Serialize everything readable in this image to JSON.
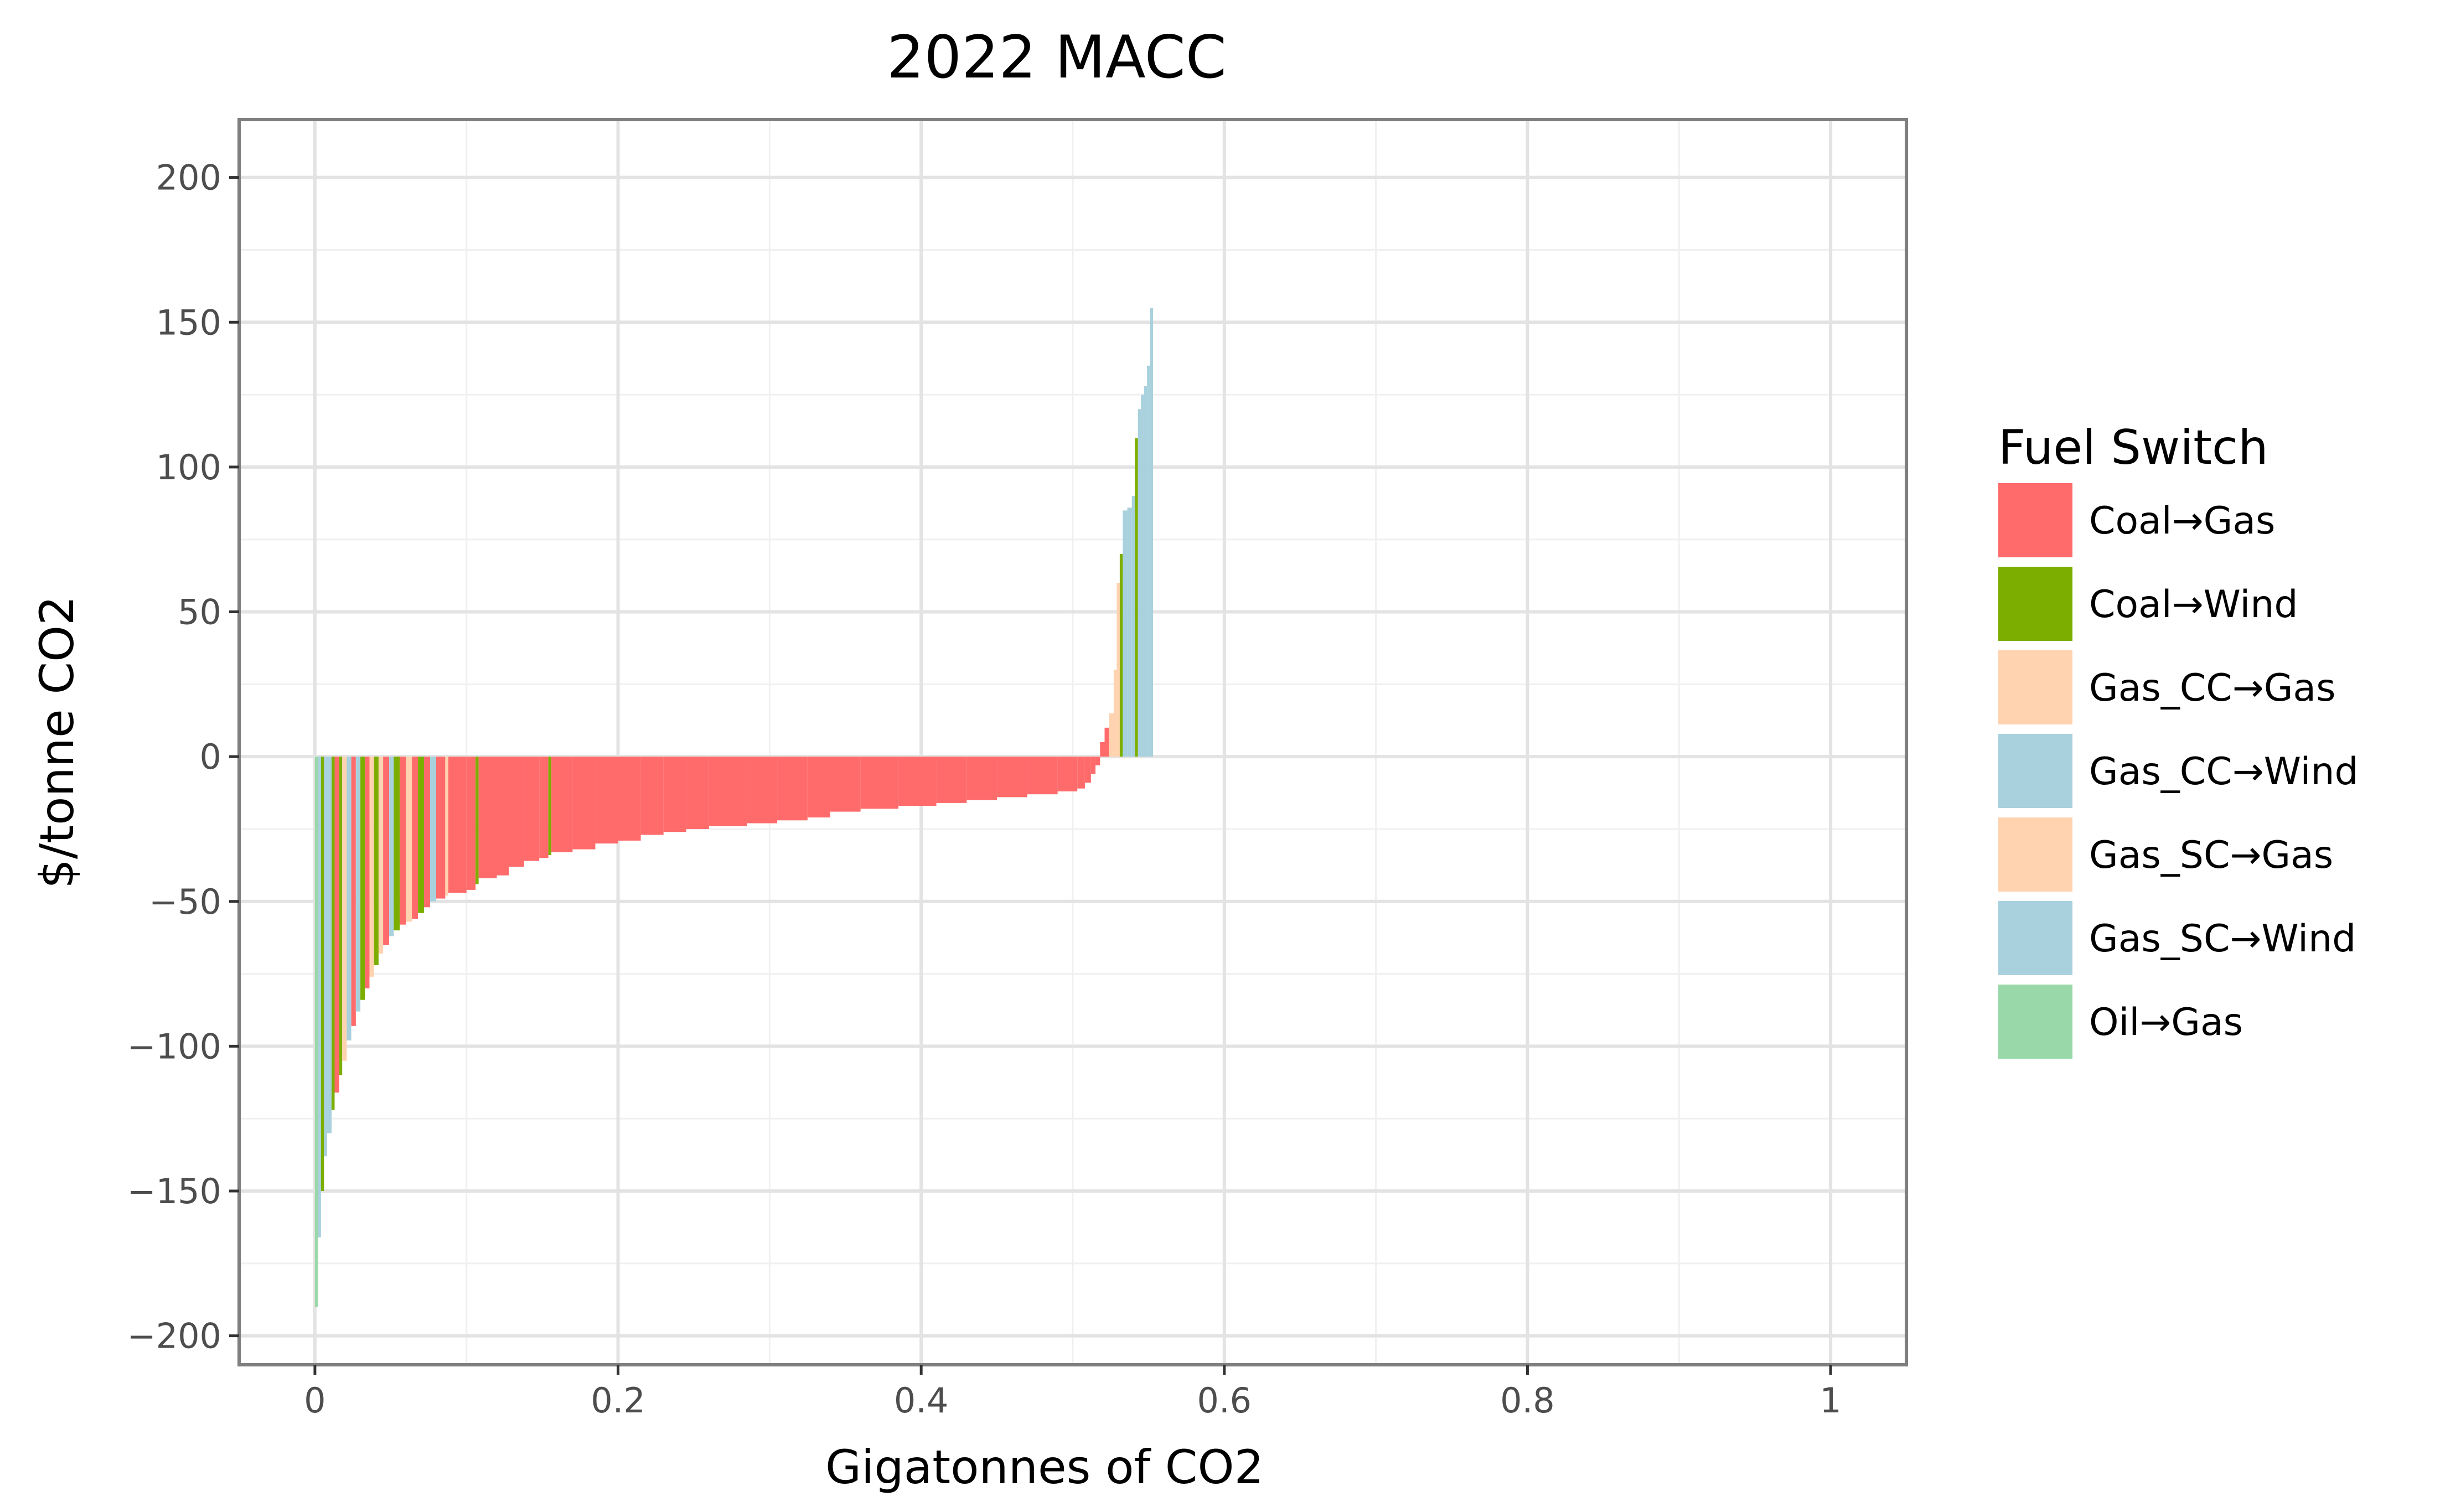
{
  "chart_data": {
    "type": "bar",
    "title": "2022 MACC",
    "xlabel": "Gigatonnes of CO2",
    "ylabel": "$/tonne CO2",
    "xlim": [
      -0.05,
      1.05
    ],
    "ylim": [
      -210,
      220
    ],
    "x_ticks": [
      0,
      0.2,
      0.4,
      0.6,
      0.8,
      1
    ],
    "x_tick_labels": [
      "0",
      "0.2",
      "0.4",
      "0.6",
      "0.8",
      "1"
    ],
    "y_ticks": [
      200,
      150,
      100,
      50,
      0,
      -50,
      -100,
      -150,
      -200
    ],
    "y_tick_labels": [
      "200",
      "150",
      "100",
      "50",
      "0",
      "−50",
      "−100",
      "−150",
      "−200"
    ],
    "grid": true,
    "legend_position": "right",
    "legend": {
      "title": "Fuel Switch",
      "entries": [
        {
          "label": "Coal→Gas",
          "color": "#FF6B6B"
        },
        {
          "label": "Coal→Wind",
          "color": "#7CAE00"
        },
        {
          "label": "Gas_CC→Gas",
          "color": "#FFD3B0"
        },
        {
          "label": "Gas_CC→Wind",
          "color": "#A8D1DD"
        },
        {
          "label": "Gas_SC→Gas",
          "color": "#FFD3B0"
        },
        {
          "label": "Gas_SC→Wind",
          "color": "#A8D1DD"
        },
        {
          "label": "Oil→Gas",
          "color": "#99D8A8"
        }
      ]
    },
    "steps": [
      {
        "x0": 0.0,
        "x1": 0.002,
        "y": -190,
        "fuel": "Oil→Gas"
      },
      {
        "x0": 0.002,
        "x1": 0.004,
        "y": -166,
        "fuel": "Gas_CC→Wind"
      },
      {
        "x0": 0.004,
        "x1": 0.006,
        "y": -150,
        "fuel": "Coal→Wind"
      },
      {
        "x0": 0.006,
        "x1": 0.008,
        "y": -138,
        "fuel": "Gas_SC→Wind"
      },
      {
        "x0": 0.008,
        "x1": 0.011,
        "y": -130,
        "fuel": "Gas_CC→Wind"
      },
      {
        "x0": 0.011,
        "x1": 0.013,
        "y": -122,
        "fuel": "Coal→Wind"
      },
      {
        "x0": 0.013,
        "x1": 0.016,
        "y": -116,
        "fuel": "Coal→Gas"
      },
      {
        "x0": 0.016,
        "x1": 0.018,
        "y": -110,
        "fuel": "Coal→Wind"
      },
      {
        "x0": 0.018,
        "x1": 0.021,
        "y": -105,
        "fuel": "Gas_CC→Gas"
      },
      {
        "x0": 0.021,
        "x1": 0.024,
        "y": -98,
        "fuel": "Gas_CC→Wind"
      },
      {
        "x0": 0.024,
        "x1": 0.027,
        "y": -93,
        "fuel": "Coal→Gas"
      },
      {
        "x0": 0.027,
        "x1": 0.03,
        "y": -88,
        "fuel": "Gas_SC→Wind"
      },
      {
        "x0": 0.03,
        "x1": 0.033,
        "y": -84,
        "fuel": "Coal→Wind"
      },
      {
        "x0": 0.033,
        "x1": 0.036,
        "y": -80,
        "fuel": "Coal→Gas"
      },
      {
        "x0": 0.036,
        "x1": 0.039,
        "y": -76,
        "fuel": "Gas_CC→Gas"
      },
      {
        "x0": 0.039,
        "x1": 0.042,
        "y": -72,
        "fuel": "Coal→Wind"
      },
      {
        "x0": 0.042,
        "x1": 0.045,
        "y": -68,
        "fuel": "Gas_SC→Gas"
      },
      {
        "x0": 0.045,
        "x1": 0.049,
        "y": -65,
        "fuel": "Coal→Gas"
      },
      {
        "x0": 0.049,
        "x1": 0.052,
        "y": -62,
        "fuel": "Gas_CC→Wind"
      },
      {
        "x0": 0.052,
        "x1": 0.056,
        "y": -60,
        "fuel": "Coal→Wind"
      },
      {
        "x0": 0.056,
        "x1": 0.06,
        "y": -58,
        "fuel": "Coal→Gas"
      },
      {
        "x0": 0.06,
        "x1": 0.064,
        "y": -57,
        "fuel": "Gas_CC→Gas"
      },
      {
        "x0": 0.064,
        "x1": 0.068,
        "y": -56,
        "fuel": "Coal→Gas"
      },
      {
        "x0": 0.068,
        "x1": 0.072,
        "y": -54,
        "fuel": "Coal→Wind"
      },
      {
        "x0": 0.072,
        "x1": 0.076,
        "y": -52,
        "fuel": "Coal→Gas"
      },
      {
        "x0": 0.076,
        "x1": 0.08,
        "y": -50,
        "fuel": "Gas_SC→Wind"
      },
      {
        "x0": 0.08,
        "x1": 0.086,
        "y": -49,
        "fuel": "Coal→Gas"
      },
      {
        "x0": 0.086,
        "x1": 0.088,
        "y": -48,
        "fuel": "Gas_CC→Gas"
      },
      {
        "x0": 0.088,
        "x1": 0.1,
        "y": -47,
        "fuel": "Coal→Gas"
      },
      {
        "x0": 0.1,
        "x1": 0.106,
        "y": -46,
        "fuel": "Coal→Gas"
      },
      {
        "x0": 0.106,
        "x1": 0.108,
        "y": -44,
        "fuel": "Coal→Wind"
      },
      {
        "x0": 0.108,
        "x1": 0.12,
        "y": -42,
        "fuel": "Coal→Gas"
      },
      {
        "x0": 0.12,
        "x1": 0.128,
        "y": -41,
        "fuel": "Coal→Gas"
      },
      {
        "x0": 0.128,
        "x1": 0.138,
        "y": -38,
        "fuel": "Coal→Gas"
      },
      {
        "x0": 0.138,
        "x1": 0.148,
        "y": -36,
        "fuel": "Coal→Gas"
      },
      {
        "x0": 0.148,
        "x1": 0.154,
        "y": -35,
        "fuel": "Coal→Gas"
      },
      {
        "x0": 0.154,
        "x1": 0.156,
        "y": -34,
        "fuel": "Coal→Wind"
      },
      {
        "x0": 0.156,
        "x1": 0.17,
        "y": -33,
        "fuel": "Coal→Gas"
      },
      {
        "x0": 0.17,
        "x1": 0.185,
        "y": -32,
        "fuel": "Coal→Gas"
      },
      {
        "x0": 0.185,
        "x1": 0.2,
        "y": -30,
        "fuel": "Coal→Gas"
      },
      {
        "x0": 0.2,
        "x1": 0.215,
        "y": -29,
        "fuel": "Coal→Gas"
      },
      {
        "x0": 0.215,
        "x1": 0.23,
        "y": -27,
        "fuel": "Coal→Gas"
      },
      {
        "x0": 0.23,
        "x1": 0.245,
        "y": -26,
        "fuel": "Coal→Gas"
      },
      {
        "x0": 0.245,
        "x1": 0.26,
        "y": -25,
        "fuel": "Coal→Gas"
      },
      {
        "x0": 0.26,
        "x1": 0.285,
        "y": -24,
        "fuel": "Coal→Gas"
      },
      {
        "x0": 0.285,
        "x1": 0.305,
        "y": -23,
        "fuel": "Coal→Gas"
      },
      {
        "x0": 0.305,
        "x1": 0.325,
        "y": -22,
        "fuel": "Coal→Gas"
      },
      {
        "x0": 0.325,
        "x1": 0.34,
        "y": -21,
        "fuel": "Coal→Gas"
      },
      {
        "x0": 0.34,
        "x1": 0.36,
        "y": -19,
        "fuel": "Coal→Gas"
      },
      {
        "x0": 0.36,
        "x1": 0.385,
        "y": -18,
        "fuel": "Coal→Gas"
      },
      {
        "x0": 0.385,
        "x1": 0.41,
        "y": -17,
        "fuel": "Coal→Gas"
      },
      {
        "x0": 0.41,
        "x1": 0.43,
        "y": -16,
        "fuel": "Coal→Gas"
      },
      {
        "x0": 0.43,
        "x1": 0.45,
        "y": -15,
        "fuel": "Coal→Gas"
      },
      {
        "x0": 0.45,
        "x1": 0.47,
        "y": -14,
        "fuel": "Coal→Gas"
      },
      {
        "x0": 0.47,
        "x1": 0.49,
        "y": -13,
        "fuel": "Coal→Gas"
      },
      {
        "x0": 0.49,
        "x1": 0.503,
        "y": -12,
        "fuel": "Coal→Gas"
      },
      {
        "x0": 0.503,
        "x1": 0.508,
        "y": -11,
        "fuel": "Coal→Gas"
      },
      {
        "x0": 0.508,
        "x1": 0.512,
        "y": -9,
        "fuel": "Coal→Gas"
      },
      {
        "x0": 0.512,
        "x1": 0.515,
        "y": -6,
        "fuel": "Coal→Gas"
      },
      {
        "x0": 0.515,
        "x1": 0.518,
        "y": -3,
        "fuel": "Coal→Gas"
      },
      {
        "x0": 0.518,
        "x1": 0.521,
        "y": 5,
        "fuel": "Coal→Gas"
      },
      {
        "x0": 0.521,
        "x1": 0.524,
        "y": 10,
        "fuel": "Coal→Gas"
      },
      {
        "x0": 0.524,
        "x1": 0.527,
        "y": 15,
        "fuel": "Gas_CC→Gas"
      },
      {
        "x0": 0.527,
        "x1": 0.529,
        "y": 30,
        "fuel": "Gas_CC→Gas"
      },
      {
        "x0": 0.529,
        "x1": 0.531,
        "y": 60,
        "fuel": "Gas_SC→Gas"
      },
      {
        "x0": 0.531,
        "x1": 0.533,
        "y": 70,
        "fuel": "Coal→Wind"
      },
      {
        "x0": 0.533,
        "x1": 0.536,
        "y": 85,
        "fuel": "Gas_CC→Wind"
      },
      {
        "x0": 0.536,
        "x1": 0.539,
        "y": 86,
        "fuel": "Gas_CC→Wind"
      },
      {
        "x0": 0.539,
        "x1": 0.541,
        "y": 90,
        "fuel": "Gas_SC→Wind"
      },
      {
        "x0": 0.541,
        "x1": 0.543,
        "y": 110,
        "fuel": "Coal→Wind"
      },
      {
        "x0": 0.543,
        "x1": 0.545,
        "y": 120,
        "fuel": "Gas_CC→Wind"
      },
      {
        "x0": 0.545,
        "x1": 0.547,
        "y": 125,
        "fuel": "Gas_CC→Wind"
      },
      {
        "x0": 0.547,
        "x1": 0.549,
        "y": 128,
        "fuel": "Gas_SC→Wind"
      },
      {
        "x0": 0.549,
        "x1": 0.551,
        "y": 135,
        "fuel": "Gas_CC→Wind"
      },
      {
        "x0": 0.551,
        "x1": 0.553,
        "y": 155,
        "fuel": "Gas_SC→Wind"
      }
    ]
  }
}
